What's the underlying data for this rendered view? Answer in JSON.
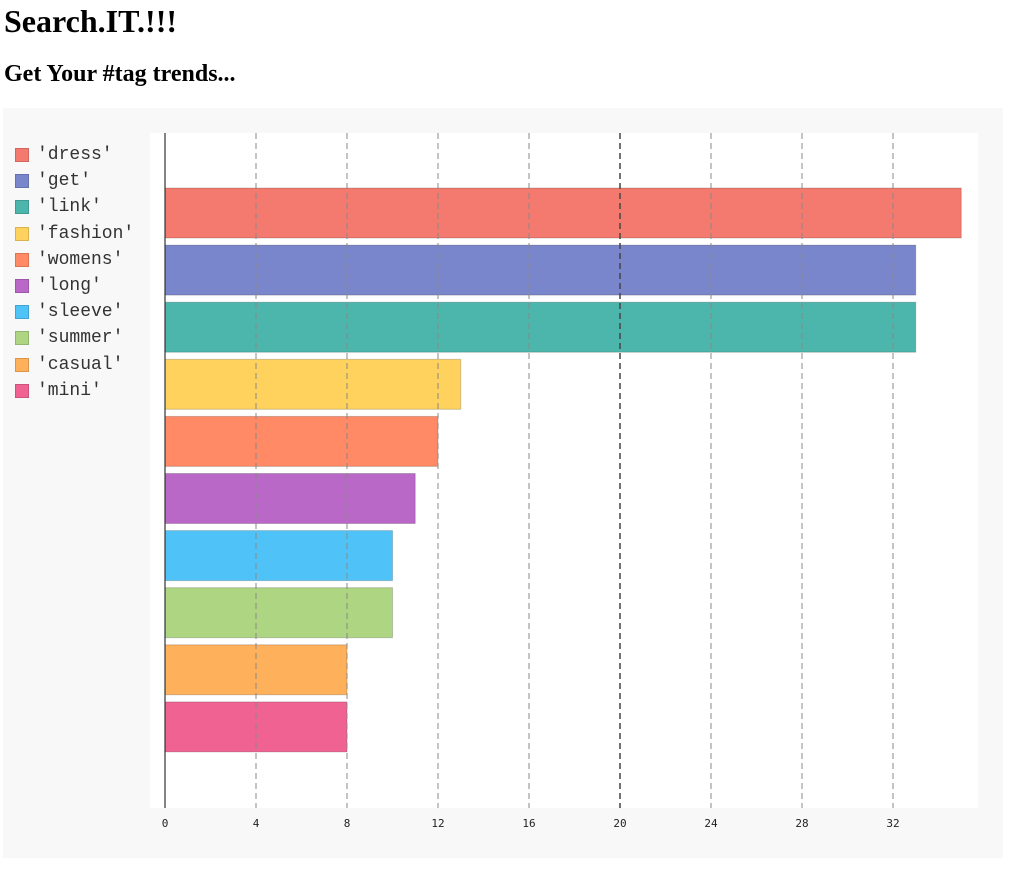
{
  "header": {
    "title": "Search.IT.!!!",
    "subtitle": "Get Your #tag trends..."
  },
  "chart_data": {
    "type": "bar",
    "orientation": "horizontal",
    "categories": [
      "'dress'",
      "'get'",
      "'link'",
      "'fashion'",
      "'womens'",
      "'long'",
      "'sleeve'",
      "'summer'",
      "'casual'",
      "'mini'"
    ],
    "values": [
      35,
      33,
      33,
      13,
      12,
      11,
      10,
      10,
      8,
      8
    ],
    "colors": [
      "#f47a6f",
      "#7986cb",
      "#4db6ac",
      "#ffd25e",
      "#ff8a65",
      "#ba68c8",
      "#4fc3f7",
      "#aed581",
      "#ffb05a",
      "#f06292"
    ],
    "xlim": [
      0,
      35
    ],
    "xticks": [
      0,
      4,
      8,
      12,
      16,
      20,
      24,
      28,
      32
    ],
    "grid": true,
    "legend_position": "left",
    "title": "",
    "xlabel": "",
    "ylabel": ""
  }
}
